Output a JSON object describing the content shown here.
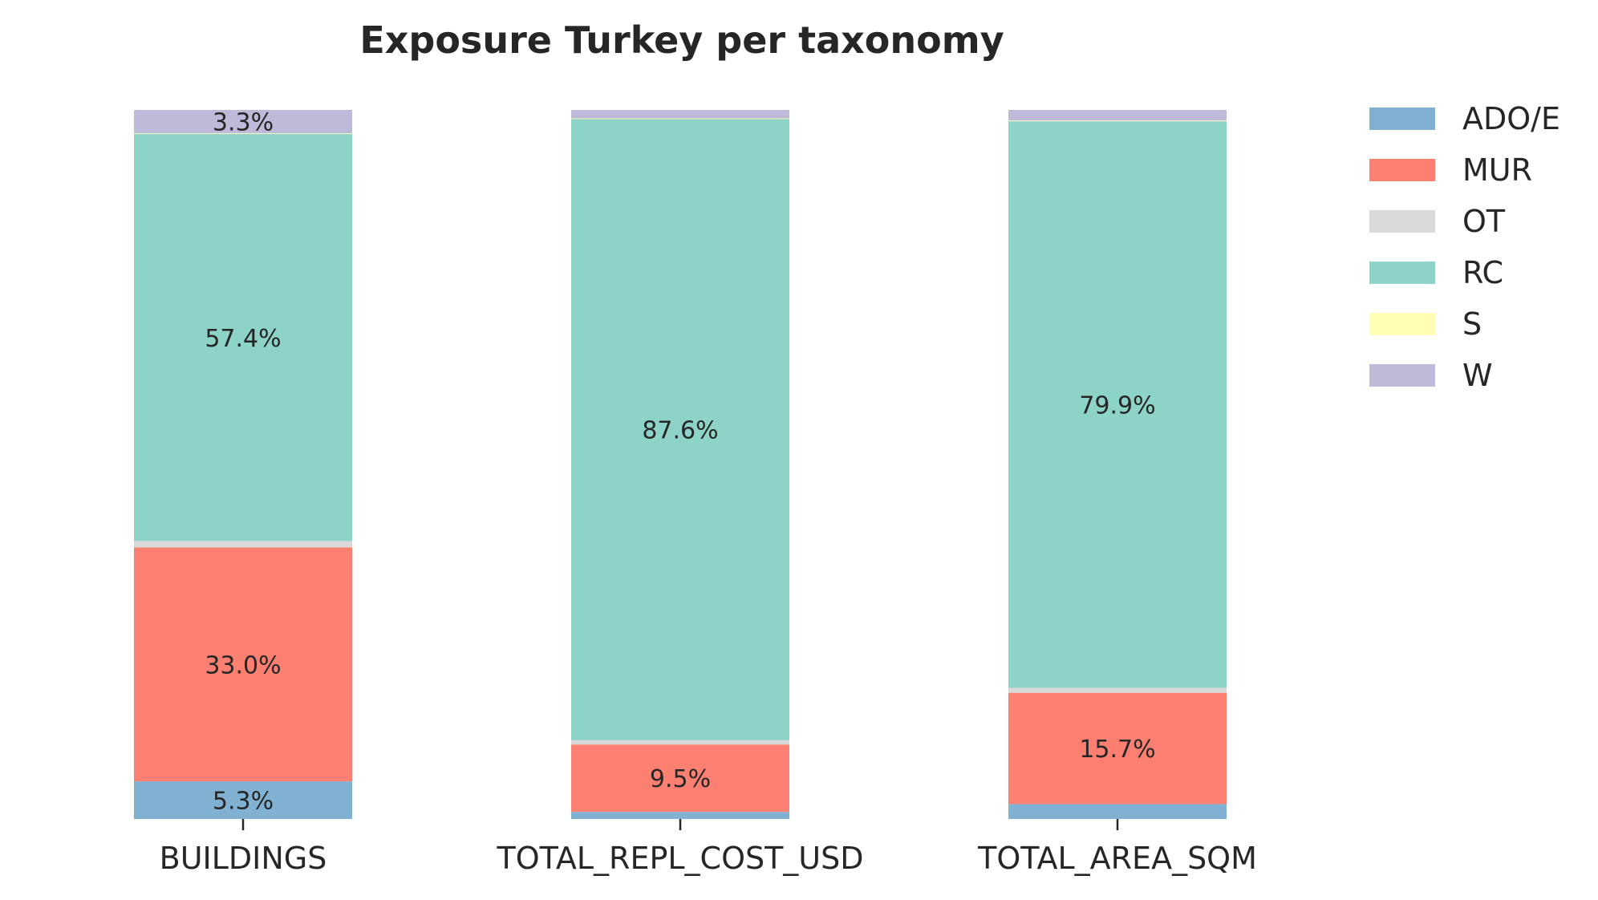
{
  "chart_data": {
    "type": "bar",
    "stacked": true,
    "title": "Exposure Turkey per taxonomy",
    "xlabel": "",
    "ylabel": "",
    "ylim": [
      0,
      100
    ],
    "grid": false,
    "legend_position": "top-right",
    "categories": [
      "BUILDINGS",
      "TOTAL_REPL_COST_USD",
      "TOTAL_AREA_SQM"
    ],
    "series": [
      {
        "name": "ADO/E",
        "color": "#80b1d3",
        "values": [
          5.3,
          1.0,
          2.1
        ],
        "labels": [
          "5.3%",
          "",
          ""
        ]
      },
      {
        "name": "MUR",
        "color": "#fb8072",
        "values": [
          33.0,
          9.5,
          15.7
        ],
        "labels": [
          "33.0%",
          "9.5%",
          "15.7%"
        ]
      },
      {
        "name": "OT",
        "color": "#d9d9d9",
        "values": [
          0.9,
          0.6,
          0.7
        ],
        "labels": [
          "",
          "",
          ""
        ]
      },
      {
        "name": "RC",
        "color": "#8dd3c7",
        "values": [
          57.4,
          87.6,
          79.9
        ],
        "labels": [
          "57.4%",
          "87.6%",
          "79.9%"
        ]
      },
      {
        "name": "S",
        "color": "#ffffb3",
        "values": [
          0.1,
          0.1,
          0.1
        ],
        "labels": [
          "",
          "",
          ""
        ]
      },
      {
        "name": "W",
        "color": "#bebada",
        "values": [
          3.3,
          1.2,
          1.5
        ],
        "labels": [
          "3.3%",
          "",
          ""
        ]
      }
    ]
  }
}
